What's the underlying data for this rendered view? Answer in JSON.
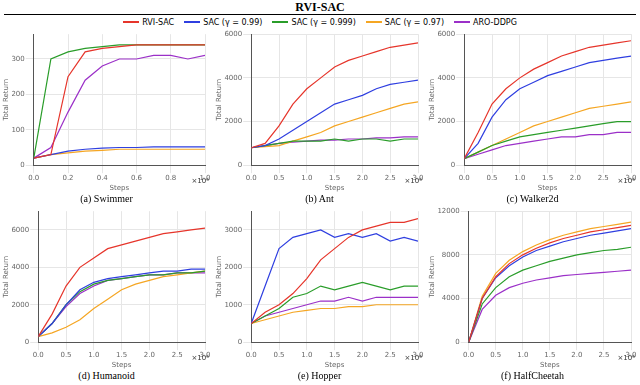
{
  "figure": {
    "title": "RVI-SAC",
    "legend": "top"
  },
  "chart_data": [
    {
      "type": "line",
      "title": "(a) Swimmer",
      "x_label": "Steps",
      "y_label": "Total Return",
      "annotations": [
        "×10⁶"
      ],
      "x": [
        0,
        0.1,
        0.2,
        0.3,
        0.4,
        0.5,
        0.6,
        0.7,
        0.8,
        0.9,
        1.0
      ],
      "xlim": [
        0,
        1
      ],
      "xticks": [
        {
          "value": 0,
          "label": "0.0"
        },
        0.2,
        0.4,
        0.6,
        0.8,
        {
          "value": 1,
          "label": "1.0"
        }
      ],
      "ylim": [
        0,
        370
      ],
      "yticks": [
        0,
        100,
        200,
        300
      ],
      "grid": true,
      "series": [
        {
          "name": "RVI-SAC",
          "color": "#e6352b",
          "values": [
            20,
            30,
            250,
            320,
            330,
            335,
            340,
            340,
            340,
            340,
            340
          ]
        },
        {
          "name": "SAC (γ = 0.99)",
          "color": "#2f3fe0",
          "values": [
            20,
            30,
            40,
            45,
            48,
            50,
            50,
            52,
            52,
            52,
            52
          ]
        },
        {
          "name": "SAC (γ = 0.999)",
          "color": "#2a9d2a",
          "values": [
            20,
            300,
            320,
            330,
            335,
            340,
            340,
            340,
            340,
            340,
            340
          ]
        },
        {
          "name": "SAC (γ = 0.97)",
          "color": "#f5a623",
          "values": [
            20,
            30,
            35,
            40,
            42,
            45,
            45,
            45,
            45,
            45,
            45
          ]
        },
        {
          "name": "ARO-DDPG",
          "color": "#9b30c8",
          "values": [
            20,
            50,
            150,
            240,
            280,
            300,
            300,
            310,
            310,
            300,
            310
          ]
        }
      ]
    },
    {
      "type": "line",
      "title": "(b) Ant",
      "x_label": "Steps",
      "y_label": "Total Return",
      "annotations": [
        "×10⁶"
      ],
      "x": [
        0,
        0.25,
        0.5,
        0.75,
        1,
        1.25,
        1.5,
        1.75,
        2,
        2.25,
        2.5,
        2.75,
        3
      ],
      "xlim": [
        0,
        3
      ],
      "xticks": [
        {
          "value": 0,
          "label": "0.0"
        },
        0.5,
        {
          "value": 1,
          "label": "1.0"
        },
        1.5,
        {
          "value": 2,
          "label": "2.0"
        },
        2.5,
        {
          "value": 3,
          "label": "3.0"
        }
      ],
      "ylim": [
        0,
        6000
      ],
      "yticks": [
        0,
        2000,
        4000,
        6000
      ],
      "grid": true,
      "series": [
        {
          "name": "RVI-SAC",
          "color": "#e6352b",
          "values": [
            800,
            1000,
            1800,
            2800,
            3500,
            4000,
            4500,
            4800,
            5000,
            5200,
            5400,
            5500,
            5600
          ]
        },
        {
          "name": "SAC (γ = 0.99)",
          "color": "#2f3fe0",
          "values": [
            800,
            900,
            1200,
            1600,
            2000,
            2400,
            2800,
            3000,
            3200,
            3500,
            3700,
            3800,
            3900
          ]
        },
        {
          "name": "SAC (γ = 0.999)",
          "color": "#2a9d2a",
          "values": [
            800,
            900,
            1000,
            1100,
            1100,
            1100,
            1200,
            1100,
            1200,
            1200,
            1100,
            1200,
            1200
          ]
        },
        {
          "name": "SAC (γ = 0.97)",
          "color": "#f5a623",
          "values": [
            800,
            850,
            900,
            1100,
            1300,
            1500,
            1800,
            2000,
            2200,
            2400,
            2600,
            2800,
            2900
          ]
        },
        {
          "name": "ARO-DDPG",
          "color": "#9b30c8",
          "values": [
            800,
            900,
            1000,
            1050,
            1100,
            1150,
            1150,
            1200,
            1200,
            1250,
            1250,
            1300,
            1300
          ]
        }
      ]
    },
    {
      "type": "line",
      "title": "(c) Walker2d",
      "x_label": "Steps",
      "y_label": "Total Return",
      "annotations": [
        "×10⁶"
      ],
      "x": [
        0,
        0.25,
        0.5,
        0.75,
        1,
        1.25,
        1.5,
        1.75,
        2,
        2.25,
        2.5,
        2.75,
        3
      ],
      "xlim": [
        0,
        3
      ],
      "xticks": [
        {
          "value": 0,
          "label": "0.0"
        },
        0.5,
        {
          "value": 1,
          "label": "1.0"
        },
        1.5,
        {
          "value": 2,
          "label": "2.0"
        },
        2.5,
        {
          "value": 3,
          "label": "3.0"
        }
      ],
      "ylim": [
        0,
        6000
      ],
      "yticks": [
        0,
        2000,
        4000,
        6000
      ],
      "grid": true,
      "series": [
        {
          "name": "RVI-SAC",
          "color": "#e6352b",
          "values": [
            300,
            1500,
            2800,
            3500,
            4000,
            4400,
            4700,
            5000,
            5200,
            5400,
            5500,
            5600,
            5700
          ]
        },
        {
          "name": "SAC (γ = 0.99)",
          "color": "#2f3fe0",
          "values": [
            300,
            1000,
            2200,
            3000,
            3500,
            3800,
            4100,
            4300,
            4500,
            4700,
            4800,
            4900,
            5000
          ]
        },
        {
          "name": "SAC (γ = 0.999)",
          "color": "#2a9d2a",
          "values": [
            300,
            600,
            900,
            1100,
            1300,
            1400,
            1500,
            1600,
            1700,
            1800,
            1900,
            2000,
            2000
          ]
        },
        {
          "name": "SAC (γ = 0.97)",
          "color": "#f5a623",
          "values": [
            300,
            600,
            900,
            1200,
            1500,
            1800,
            2000,
            2200,
            2400,
            2600,
            2700,
            2800,
            2900
          ]
        },
        {
          "name": "ARO-DDPG",
          "color": "#9b30c8",
          "values": [
            300,
            500,
            700,
            900,
            1000,
            1100,
            1200,
            1300,
            1300,
            1400,
            1400,
            1500,
            1500
          ]
        }
      ]
    },
    {
      "type": "line",
      "title": "(d) Humanoid",
      "x_label": "Steps",
      "y_label": "Total Return",
      "annotations": [
        "×10⁶"
      ],
      "x": [
        0,
        0.25,
        0.5,
        0.75,
        1,
        1.25,
        1.5,
        1.75,
        2,
        2.25,
        2.5,
        2.75,
        3
      ],
      "xlim": [
        0,
        3
      ],
      "xticks": [
        {
          "value": 0,
          "label": "0.0"
        },
        0.5,
        {
          "value": 1,
          "label": "1.0"
        },
        1.5,
        {
          "value": 2,
          "label": "2.0"
        },
        2.5,
        {
          "value": 3,
          "label": "3.0"
        }
      ],
      "ylim": [
        0,
        7000
      ],
      "yticks": [
        0,
        2000,
        4000,
        6000
      ],
      "grid": true,
      "series": [
        {
          "name": "RVI-SAC",
          "color": "#e6352b",
          "values": [
            300,
            1500,
            3000,
            4000,
            4500,
            5000,
            5200,
            5400,
            5600,
            5800,
            5900,
            6000,
            6100
          ]
        },
        {
          "name": "SAC (γ = 0.99)",
          "color": "#2f3fe0",
          "values": [
            300,
            1000,
            2000,
            2800,
            3200,
            3400,
            3500,
            3600,
            3700,
            3800,
            3800,
            3900,
            3900
          ]
        },
        {
          "name": "SAC (γ = 0.999)",
          "color": "#2a9d2a",
          "values": [
            300,
            1000,
            2000,
            2700,
            3100,
            3300,
            3400,
            3500,
            3600,
            3600,
            3700,
            3700,
            3800
          ]
        },
        {
          "name": "SAC (γ = 0.97)",
          "color": "#f5a623",
          "values": [
            300,
            500,
            800,
            1200,
            1800,
            2300,
            2800,
            3100,
            3300,
            3500,
            3600,
            3700,
            3800
          ]
        },
        {
          "name": "ARO-DDPG",
          "color": "#9b30c8",
          "values": [
            300,
            1000,
            1900,
            2600,
            3000,
            3300,
            3400,
            3500,
            3600,
            3600,
            3700,
            3700,
            3700
          ]
        }
      ]
    },
    {
      "type": "line",
      "title": "(e) Hopper",
      "x_label": "Steps",
      "y_label": "Total Return",
      "annotations": [
        "×10⁶"
      ],
      "x": [
        0,
        0.25,
        0.5,
        0.75,
        1,
        1.25,
        1.5,
        1.75,
        2,
        2.25,
        2.5,
        2.75,
        3
      ],
      "xlim": [
        0,
        3
      ],
      "xticks": [
        {
          "value": 0,
          "label": "0.0"
        },
        0.5,
        {
          "value": 1,
          "label": "1.0"
        },
        1.5,
        {
          "value": 2,
          "label": "2.0"
        },
        2.5,
        {
          "value": 3,
          "label": "3.0"
        }
      ],
      "ylim": [
        0,
        3500
      ],
      "yticks": [
        0,
        1000,
        2000,
        3000
      ],
      "grid": true,
      "series": [
        {
          "name": "RVI-SAC",
          "color": "#e6352b",
          "values": [
            500,
            800,
            1000,
            1300,
            1700,
            2200,
            2500,
            2800,
            3000,
            3100,
            3200,
            3200,
            3300
          ]
        },
        {
          "name": "SAC (γ = 0.99)",
          "color": "#2f3fe0",
          "values": [
            500,
            1500,
            2500,
            2800,
            2900,
            3000,
            2800,
            2900,
            2800,
            2900,
            2700,
            2800,
            2700
          ]
        },
        {
          "name": "SAC (γ = 0.999)",
          "color": "#2a9d2a",
          "values": [
            500,
            700,
            900,
            1200,
            1300,
            1500,
            1400,
            1500,
            1600,
            1500,
            1400,
            1500,
            1500
          ]
        },
        {
          "name": "SAC (γ = 0.97)",
          "color": "#f5a623",
          "values": [
            500,
            600,
            700,
            800,
            850,
            900,
            900,
            950,
            950,
            1000,
            1000,
            1000,
            1000
          ]
        },
        {
          "name": "ARO-DDPG",
          "color": "#9b30c8",
          "values": [
            500,
            700,
            800,
            900,
            1000,
            1100,
            1100,
            1200,
            1100,
            1200,
            1200,
            1200,
            1200
          ]
        }
      ]
    },
    {
      "type": "line",
      "title": "(f) HalfCheetah",
      "x_label": "Steps",
      "y_label": "Total Return",
      "annotations": [
        "×10⁶"
      ],
      "x": [
        0,
        0.25,
        0.5,
        0.75,
        1,
        1.25,
        1.5,
        1.75,
        2,
        2.25,
        2.5,
        2.75,
        3
      ],
      "xlim": [
        0,
        3
      ],
      "xticks": [
        {
          "value": 0,
          "label": "0.0"
        },
        0.5,
        {
          "value": 1,
          "label": "1.0"
        },
        1.5,
        {
          "value": 2,
          "label": "2.0"
        },
        2.5,
        {
          "value": 3,
          "label": "3.0"
        }
      ],
      "ylim": [
        0,
        12000
      ],
      "yticks": [
        0,
        4000,
        8000,
        12000
      ],
      "grid": true,
      "series": [
        {
          "name": "RVI-SAC",
          "color": "#e6352b",
          "values": [
            0,
            4000,
            6000,
            7200,
            8000,
            8600,
            9100,
            9500,
            9800,
            10100,
            10300,
            10500,
            10700
          ]
        },
        {
          "name": "SAC (γ = 0.99)",
          "color": "#2f3fe0",
          "values": [
            0,
            4000,
            5900,
            7000,
            7800,
            8400,
            8800,
            9200,
            9500,
            9800,
            10000,
            10200,
            10400
          ]
        },
        {
          "name": "SAC (γ = 0.999)",
          "color": "#2a9d2a",
          "values": [
            0,
            3500,
            5000,
            6000,
            6600,
            7000,
            7400,
            7700,
            8000,
            8200,
            8400,
            8500,
            8700
          ]
        },
        {
          "name": "SAC (γ = 0.97)",
          "color": "#f5a623",
          "values": [
            0,
            4200,
            6300,
            7500,
            8300,
            8900,
            9400,
            9800,
            10100,
            10400,
            10600,
            10800,
            11000
          ]
        },
        {
          "name": "ARO-DDPG",
          "color": "#9b30c8",
          "values": [
            0,
            3000,
            4300,
            5000,
            5400,
            5700,
            5900,
            6100,
            6200,
            6300,
            6400,
            6500,
            6600
          ]
        }
      ]
    }
  ]
}
